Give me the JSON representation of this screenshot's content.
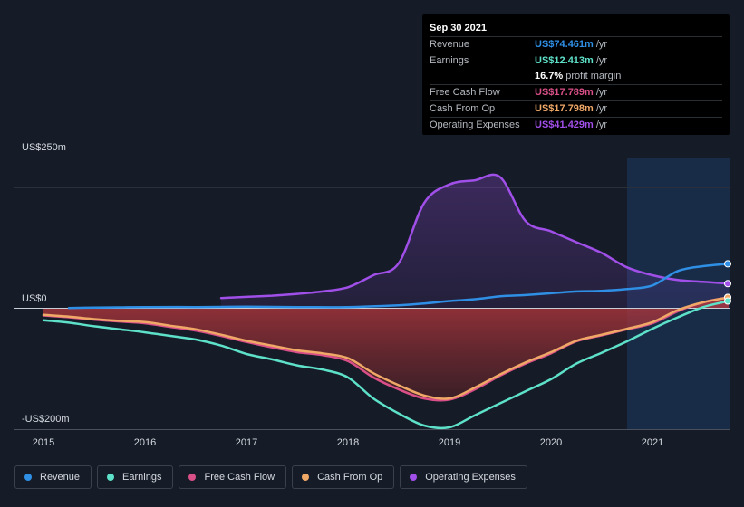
{
  "tooltip": {
    "date": "Sep 30 2021",
    "rows": [
      {
        "label": "Revenue",
        "value": "US$74.461m",
        "unit": "/yr",
        "color": "#2f8fe5"
      },
      {
        "label": "Earnings",
        "value": "US$12.413m",
        "unit": "/yr",
        "color": "#5ee1c9"
      },
      {
        "label": "",
        "value": "16.7%",
        "unit": "profit margin",
        "color": "#ffffff"
      },
      {
        "label": "Free Cash Flow",
        "value": "US$17.789m",
        "unit": "/yr",
        "color": "#d94f88"
      },
      {
        "label": "Cash From Op",
        "value": "US$17.798m",
        "unit": "/yr",
        "color": "#f0a867"
      },
      {
        "label": "Operating Expenses",
        "value": "US$41.429m",
        "unit": "/yr",
        "color": "#a04fe8"
      }
    ]
  },
  "legend": [
    {
      "label": "Revenue",
      "color": "#2f8fe5"
    },
    {
      "label": "Earnings",
      "color": "#5ee1c9"
    },
    {
      "label": "Free Cash Flow",
      "color": "#d94f88"
    },
    {
      "label": "Cash From Op",
      "color": "#f0a867"
    },
    {
      "label": "Operating Expenses",
      "color": "#a04fe8"
    }
  ],
  "chart_data": {
    "type": "area",
    "y_tick_labels": [
      "US$250m",
      "US$0",
      "-US$200m"
    ],
    "x_tick_labels": [
      "2015",
      "2016",
      "2017",
      "2018",
      "2019",
      "2020",
      "2021"
    ],
    "ylim": [
      -200,
      250
    ],
    "xlim": [
      2015.0,
      2021.75
    ],
    "highlight_from": 2020.75,
    "series": [
      {
        "name": "Operating Expenses",
        "color": "#a04fe8",
        "fill": true,
        "x": [
          2016.75,
          2017.0,
          2017.25,
          2017.5,
          2017.75,
          2018.0,
          2018.25,
          2018.5,
          2018.75,
          2019.0,
          2019.25,
          2019.5,
          2019.75,
          2020.0,
          2020.25,
          2020.5,
          2020.75,
          2021.0,
          2021.25,
          2021.5,
          2021.75
        ],
        "y": [
          17,
          19,
          21,
          24,
          28,
          35,
          55,
          75,
          175,
          206,
          213,
          218,
          145,
          128,
          110,
          92,
          68,
          55,
          47,
          44,
          41
        ]
      },
      {
        "name": "Revenue",
        "color": "#2f8fe5",
        "fill": false,
        "x": [
          2015.25,
          2015.5,
          2015.75,
          2016.0,
          2016.5,
          2017.0,
          2017.5,
          2018.0,
          2018.5,
          2018.75,
          2019.0,
          2019.25,
          2019.5,
          2019.75,
          2020.0,
          2020.25,
          2020.5,
          2020.75,
          2021.0,
          2021.25,
          2021.5,
          2021.75
        ],
        "y": [
          0.5,
          1,
          1.5,
          2,
          2,
          2.5,
          2,
          2,
          5,
          8,
          12,
          15,
          20,
          22,
          25,
          28,
          29,
          32,
          38,
          62,
          70,
          74
        ]
      },
      {
        "name": "Free Cash Flow",
        "color": "#d94f88",
        "fill": true,
        "x": [
          2015.0,
          2015.25,
          2015.5,
          2015.75,
          2016.0,
          2016.25,
          2016.5,
          2016.75,
          2017.0,
          2017.25,
          2017.5,
          2017.75,
          2018.0,
          2018.25,
          2018.5,
          2018.75,
          2019.0,
          2019.25,
          2019.5,
          2019.75,
          2020.0,
          2020.25,
          2020.5,
          2020.75,
          2021.0,
          2021.25,
          2021.5,
          2021.75
        ],
        "y": [
          -12,
          -15,
          -19,
          -22,
          -25,
          -31,
          -37,
          -46,
          -56,
          -65,
          -73,
          -78,
          -88,
          -115,
          -135,
          -150,
          -152,
          -135,
          -112,
          -92,
          -75,
          -55,
          -45,
          -35,
          -25,
          -5,
          10,
          18
        ]
      },
      {
        "name": "Cash From Op",
        "color": "#f0a867",
        "fill": false,
        "x": [
          2015.0,
          2015.25,
          2015.5,
          2015.75,
          2016.0,
          2016.25,
          2016.5,
          2016.75,
          2017.0,
          2017.25,
          2017.5,
          2017.75,
          2018.0,
          2018.25,
          2018.5,
          2018.75,
          2019.0,
          2019.25,
          2019.5,
          2019.75,
          2020.0,
          2020.25,
          2020.5,
          2020.75,
          2021.0,
          2021.25,
          2021.5,
          2021.75
        ],
        "y": [
          -11,
          -14,
          -18,
          -21,
          -23,
          -29,
          -35,
          -44,
          -54,
          -62,
          -70,
          -75,
          -83,
          -108,
          -128,
          -145,
          -150,
          -132,
          -110,
          -90,
          -73,
          -54,
          -44,
          -34,
          -23,
          -3,
          10,
          18
        ]
      },
      {
        "name": "Earnings",
        "color": "#5ee1c9",
        "fill": false,
        "x": [
          2015.0,
          2015.25,
          2015.5,
          2015.75,
          2016.0,
          2016.25,
          2016.5,
          2016.75,
          2017.0,
          2017.25,
          2017.5,
          2017.75,
          2018.0,
          2018.25,
          2018.5,
          2018.75,
          2019.0,
          2019.25,
          2019.5,
          2019.75,
          2020.0,
          2020.25,
          2020.5,
          2020.75,
          2021.0,
          2021.25,
          2021.5,
          2021.75
        ],
        "y": [
          -20,
          -24,
          -30,
          -35,
          -40,
          -46,
          -52,
          -62,
          -76,
          -85,
          -95,
          -102,
          -115,
          -150,
          -175,
          -195,
          -198,
          -178,
          -158,
          -138,
          -118,
          -92,
          -74,
          -55,
          -34,
          -15,
          2,
          12
        ]
      }
    ]
  }
}
